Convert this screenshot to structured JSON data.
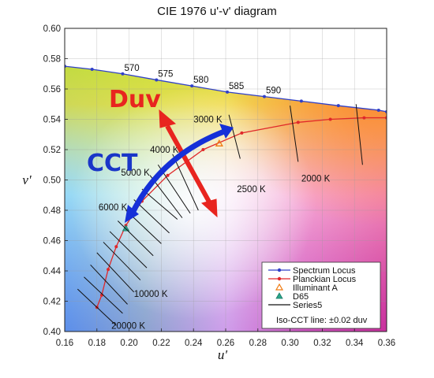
{
  "colors": {
    "spectrum_locus": "#3040c8",
    "planckian_locus": "#e0282a",
    "illuminant_a": "#f07a10",
    "d65": "#2aa58a",
    "iso_cct": "#111111",
    "duv_arrow": "#e8251f",
    "cct_arrow": "#1530d8",
    "duv_text": "#e8251f",
    "cct_text": "#1a36c8"
  },
  "chart_data": {
    "type": "scatter",
    "title": "CIE 1976 u'-v' diagram",
    "xlabel": "u'",
    "ylabel": "v'",
    "xlim": [
      0.16,
      0.36
    ],
    "ylim": [
      0.4,
      0.6
    ],
    "x_ticks": [
      "0.16",
      "0.18",
      "0.20",
      "0.22",
      "0.24",
      "0.26",
      "0.28",
      "0.30",
      "0.32",
      "0.34",
      "0.36"
    ],
    "y_ticks": [
      "0.40",
      "0.42",
      "0.44",
      "0.46",
      "0.48",
      "0.50",
      "0.52",
      "0.54",
      "0.56",
      "0.58",
      "0.60"
    ],
    "grid": true,
    "legend_position": "bottom-right",
    "series": [
      {
        "name": "Spectrum Locus",
        "style": "line-with-markers",
        "points": [
          [
            0.16,
            0.575
          ],
          [
            0.177,
            0.573
          ],
          [
            0.196,
            0.57
          ],
          [
            0.217,
            0.566
          ],
          [
            0.239,
            0.562
          ],
          [
            0.261,
            0.558
          ],
          [
            0.284,
            0.555
          ],
          [
            0.307,
            0.552
          ],
          [
            0.33,
            0.549
          ],
          [
            0.355,
            0.546
          ],
          [
            0.36,
            0.545
          ]
        ]
      },
      {
        "name": "Planckian Locus",
        "style": "line-with-markers",
        "points": [
          [
            0.18,
            0.416
          ],
          [
            0.183,
            0.424
          ],
          [
            0.187,
            0.441
          ],
          [
            0.192,
            0.456
          ],
          [
            0.198,
            0.47
          ],
          [
            0.208,
            0.486
          ],
          [
            0.224,
            0.503
          ],
          [
            0.246,
            0.52
          ],
          [
            0.27,
            0.531
          ],
          [
            0.305,
            0.538
          ],
          [
            0.325,
            0.54
          ],
          [
            0.346,
            0.541
          ],
          [
            0.36,
            0.541
          ]
        ]
      },
      {
        "name": "Illuminant A",
        "style": "triangle-marker",
        "points": [
          [
            0.256,
            0.524
          ]
        ]
      },
      {
        "name": "D65",
        "style": "triangle-marker",
        "points": [
          [
            0.198,
            0.468
          ]
        ]
      },
      {
        "name": "Series5",
        "style": "line-segments",
        "segments": [
          [
            [
              0.168,
              0.428
            ],
            [
              0.192,
              0.404
            ]
          ],
          [
            [
              0.172,
              0.436
            ],
            [
              0.196,
              0.412
            ]
          ],
          [
            [
              0.176,
              0.444
            ],
            [
              0.199,
              0.418
            ]
          ],
          [
            [
              0.18,
              0.452
            ],
            [
              0.203,
              0.426
            ]
          ],
          [
            [
              0.184,
              0.459
            ],
            [
              0.207,
              0.434
            ]
          ],
          [
            [
              0.188,
              0.466
            ],
            [
              0.211,
              0.442
            ]
          ],
          [
            [
              0.193,
              0.473
            ],
            [
              0.215,
              0.45
            ]
          ],
          [
            [
              0.198,
              0.48
            ],
            [
              0.22,
              0.458
            ]
          ],
          [
            [
              0.203,
              0.487
            ],
            [
              0.225,
              0.465
            ]
          ],
          [
            [
              0.208,
              0.494
            ],
            [
              0.23,
              0.474
            ]
          ],
          [
            [
              0.213,
              0.503
            ],
            [
              0.233,
              0.475
            ]
          ],
          [
            [
              0.218,
              0.51
            ],
            [
              0.238,
              0.478
            ]
          ],
          [
            [
              0.227,
              0.517
            ],
            [
              0.243,
              0.48
            ]
          ],
          [
            [
              0.262,
              0.543
            ],
            [
              0.269,
              0.514
            ]
          ],
          [
            [
              0.3,
              0.549
            ],
            [
              0.305,
              0.512
            ]
          ],
          [
            [
              0.341,
              0.55
            ],
            [
              0.345,
              0.51
            ]
          ]
        ]
      }
    ],
    "wavelength_labels": [
      {
        "text": "570",
        "at": [
          0.196,
          0.57
        ]
      },
      {
        "text": "575",
        "at": [
          0.217,
          0.566
        ]
      },
      {
        "text": "580",
        "at": [
          0.239,
          0.562
        ]
      },
      {
        "text": "585",
        "at": [
          0.261,
          0.558
        ]
      },
      {
        "text": "590",
        "at": [
          0.284,
          0.555
        ]
      }
    ],
    "cct_labels": [
      {
        "text": "3000 K",
        "at": [
          0.24,
          0.54
        ]
      },
      {
        "text": "4000 K",
        "at": [
          0.213,
          0.52
        ]
      },
      {
        "text": "5000 K",
        "at": [
          0.195,
          0.505
        ]
      },
      {
        "text": "6000 K",
        "at": [
          0.181,
          0.482
        ]
      },
      {
        "text": "2500 K",
        "at": [
          0.267,
          0.494
        ]
      },
      {
        "text": "2000 K",
        "at": [
          0.307,
          0.501
        ]
      },
      {
        "text": "10000 K",
        "at": [
          0.203,
          0.425
        ]
      },
      {
        "text": "20000 K",
        "at": [
          0.189,
          0.404
        ]
      }
    ],
    "annotations": {
      "duv": {
        "text": "Duv"
      },
      "cct": {
        "text": "CCT"
      },
      "iso_cct_note": "Iso-CCT line: ±0.02 duv"
    }
  }
}
